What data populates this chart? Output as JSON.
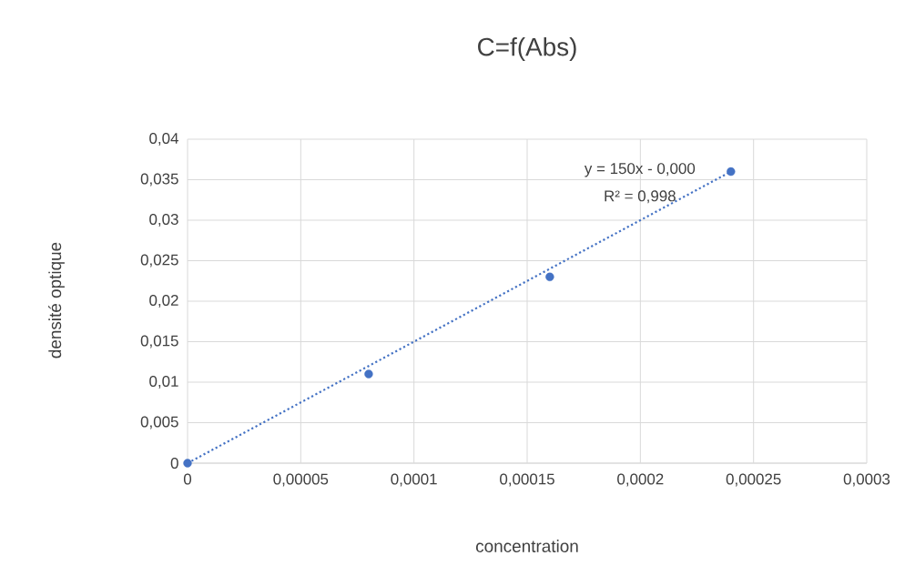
{
  "chart_data": {
    "type": "scatter",
    "title": "C=f(Abs)",
    "xlabel": "concentration",
    "ylabel": "densité optique",
    "xlim": [
      0,
      0.0003
    ],
    "ylim": [
      0,
      0.04
    ],
    "xticks": [
      0,
      {
        "value": 5e-05,
        "label": "0,00005"
      },
      {
        "value": 0.0001,
        "label": "0,0001"
      },
      {
        "value": 0.00015,
        "label": "0,00015"
      },
      {
        "value": 0.0002,
        "label": "0,0002"
      },
      {
        "value": 0.00025,
        "label": "0,00025"
      },
      {
        "value": 0.0003,
        "label": "0,0003"
      }
    ],
    "yticks": [
      0,
      {
        "value": 0.005,
        "label": "0,005"
      },
      {
        "value": 0.01,
        "label": "0,01"
      },
      {
        "value": 0.015,
        "label": "0,015"
      },
      {
        "value": 0.02,
        "label": "0,02"
      },
      {
        "value": 0.025,
        "label": "0,025"
      },
      {
        "value": 0.03,
        "label": "0,03"
      },
      {
        "value": 0.035,
        "label": "0,035"
      },
      {
        "value": 0.04,
        "label": "0,04"
      }
    ],
    "grid": true,
    "series": [
      {
        "color": "#4472c4",
        "marker": "circle",
        "x": [
          0,
          8e-05,
          0.00016,
          0.00024
        ],
        "values": [
          0,
          0.011,
          0.023,
          0.036
        ]
      },
      {
        "type": "line",
        "color": "#4472c4",
        "marker": "none",
        "line_style": "dotted",
        "x": [
          0,
          0.00024
        ],
        "values": [
          0,
          0.036
        ]
      }
    ],
    "annotations": [
      "y = 150x - 0,000",
      "R² = 0,998"
    ]
  }
}
